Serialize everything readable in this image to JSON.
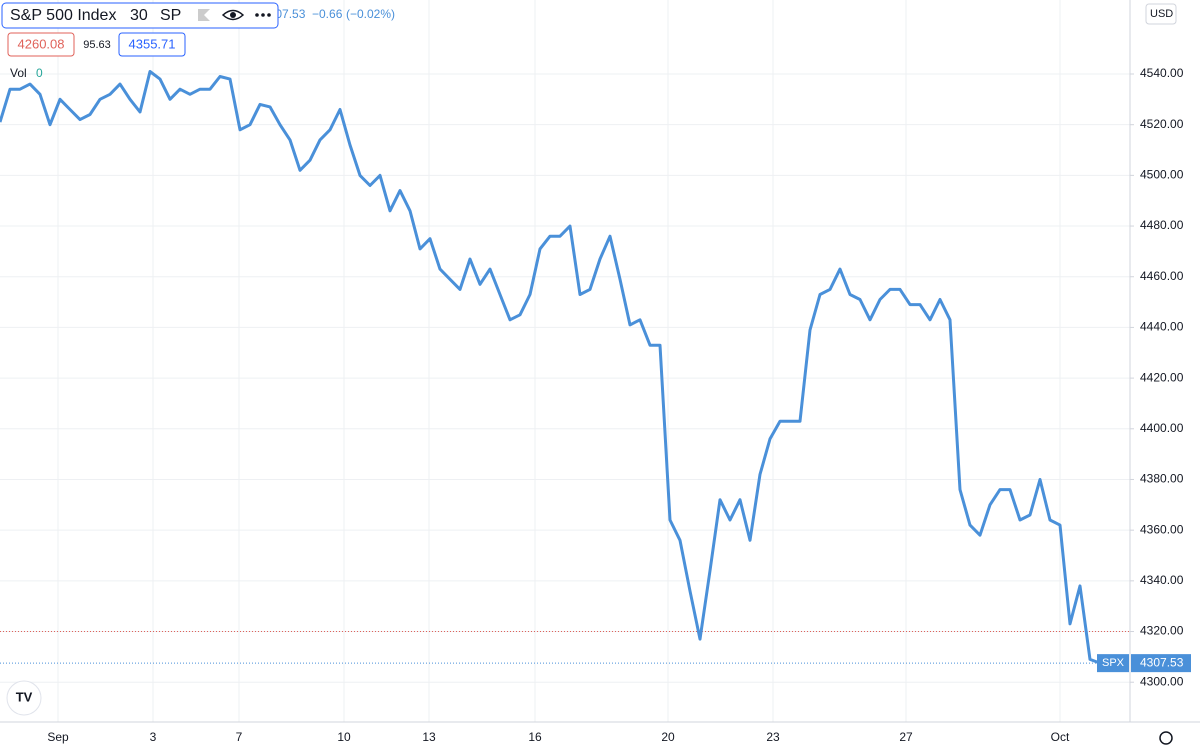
{
  "chart_data": {
    "type": "line",
    "symbol": "S&P 500 Index",
    "interval": "30",
    "exchange": "SP",
    "last_price": "4307.53",
    "change": "−0.66",
    "change_pct": "(−0.02%)",
    "low_label": "4260.08",
    "range_label": "95.63",
    "high_label": "4355.71",
    "volume_label": "Vol",
    "volume_value": "0",
    "currency": "USD",
    "series_tag": "SPX",
    "series": [
      {
        "name": "SPX",
        "color": "#4a90d9",
        "values": [
          4521,
          4534,
          4534,
          4536,
          4532,
          4520,
          4530,
          4526,
          4522,
          4524,
          4530,
          4532,
          4536,
          4530,
          4525,
          4541,
          4538,
          4530,
          4534,
          4532,
          4534,
          4534,
          4539,
          4538,
          4518,
          4520,
          4528,
          4527,
          4520,
          4514,
          4502,
          4506,
          4514,
          4518,
          4526,
          4512,
          4500,
          4496,
          4500,
          4486,
          4494,
          4486,
          4471,
          4475,
          4463,
          4459,
          4455,
          4467,
          4457,
          4463,
          4453,
          4443,
          4445,
          4453,
          4471,
          4476,
          4476,
          4480,
          4453,
          4455,
          4467,
          4476,
          4459,
          4441,
          4443,
          4433,
          4433,
          4364,
          4356,
          4336,
          4317,
          4344,
          4372,
          4364,
          4372,
          4356,
          4382,
          4396,
          4403,
          4403,
          4403,
          4439,
          4453,
          4455,
          4463,
          4453,
          4451,
          4443,
          4451,
          4455,
          4455,
          4449,
          4449,
          4443,
          4451,
          4443,
          4376,
          4362,
          4358,
          4370,
          4376,
          4376,
          4364,
          4366,
          4380,
          4364,
          4362,
          4323,
          4338,
          4309,
          4307.53
        ],
        "value_label": "4307.53"
      }
    ],
    "reference_line": {
      "value": 4320,
      "color": "#e0625a"
    },
    "xlim": [
      0,
      113
    ],
    "xticks": [
      {
        "value": 5.8,
        "label": "Sep"
      },
      {
        "value": 15.3,
        "label": "3"
      },
      {
        "value": 23.9,
        "label": "7"
      },
      {
        "value": 34.4,
        "label": "10"
      },
      {
        "value": 42.9,
        "label": "13"
      },
      {
        "value": 53.5,
        "label": "16"
      },
      {
        "value": 66.8,
        "label": "20"
      },
      {
        "value": 77.3,
        "label": "23"
      },
      {
        "value": 90.6,
        "label": "27"
      },
      {
        "value": 106,
        "label": "Oct"
      }
    ],
    "ylim": [
      4284.3,
      4569.2
    ],
    "yticks": [
      {
        "value": 4300,
        "label": "4300.00"
      },
      {
        "value": 4320,
        "label": "4320.00"
      },
      {
        "value": 4340,
        "label": "4340.00"
      },
      {
        "value": 4360,
        "label": "4360.00"
      },
      {
        "value": 4380,
        "label": "4380.00"
      },
      {
        "value": 4400,
        "label": "4400.00"
      },
      {
        "value": 4420,
        "label": "4420.00"
      },
      {
        "value": 4440,
        "label": "4440.00"
      },
      {
        "value": 4460,
        "label": "4460.00"
      },
      {
        "value": 4480,
        "label": "4480.00"
      },
      {
        "value": 4500,
        "label": "4500.00"
      },
      {
        "value": 4520,
        "label": "4520.00"
      },
      {
        "value": 4540,
        "label": "4540.00"
      }
    ],
    "grid": true
  }
}
